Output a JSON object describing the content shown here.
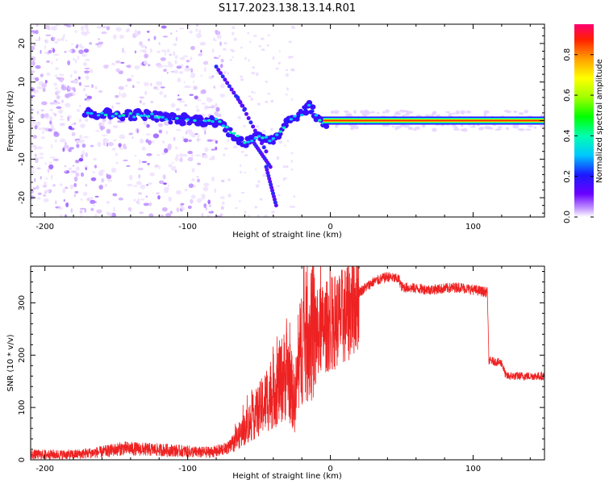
{
  "figure": {
    "title": "S117.2023.138.13.14.R01"
  },
  "chart_data": [
    {
      "type": "heatmap",
      "name": "spectrogram",
      "xlabel": "Height of straight line (km)",
      "ylabel": "Frequency (Hz)",
      "xlim": [
        -210,
        150
      ],
      "ylim": [
        -25,
        25
      ],
      "x_ticks": [
        -200,
        -100,
        0,
        100
      ],
      "y_ticks": [
        -20,
        -10,
        0,
        10,
        20
      ],
      "colorbar": {
        "label": "Normalized spectral amplitude",
        "range": [
          0,
          0.95
        ],
        "ticks": [
          0.0,
          0.2,
          0.4,
          0.6,
          0.8
        ]
      },
      "signal_trace": {
        "description_points_x": [
          -170,
          -150,
          -130,
          -110,
          -90,
          -80,
          -70,
          -60,
          -50,
          -40,
          -30,
          -20,
          -15,
          -10,
          -5,
          0,
          10,
          50,
          100,
          150
        ],
        "frequency_hz": [
          2,
          1.5,
          1.5,
          0.5,
          0,
          0,
          -3,
          -6,
          -4,
          -5,
          0,
          2,
          4,
          1,
          -1,
          0,
          0,
          0,
          0,
          0
        ]
      }
    },
    {
      "type": "line",
      "name": "snr",
      "xlabel": "Height of straight line (km)",
      "ylabel": "SNR (10 * v/v)",
      "xlim": [
        -210,
        150
      ],
      "ylim": [
        0,
        370
      ],
      "x_ticks": [
        -200,
        -100,
        0,
        100
      ],
      "y_ticks": [
        0,
        100,
        200,
        300
      ],
      "series": [
        {
          "name": "SNR",
          "color": "#ee2222",
          "x": [
            -210,
            -180,
            -160,
            -145,
            -130,
            -110,
            -90,
            -80,
            -70,
            -60,
            -50,
            -40,
            -30,
            -25,
            -20,
            -10,
            0,
            10,
            20,
            30,
            40,
            48,
            50,
            70,
            90,
            110,
            111,
            120,
            123,
            140,
            150
          ],
          "values": [
            10,
            10,
            15,
            22,
            20,
            18,
            14,
            16,
            25,
            60,
            95,
            130,
            170,
            110,
            230,
            240,
            260,
            275,
            320,
            340,
            350,
            345,
            330,
            325,
            330,
            320,
            190,
            185,
            160,
            160,
            160
          ]
        }
      ]
    }
  ]
}
